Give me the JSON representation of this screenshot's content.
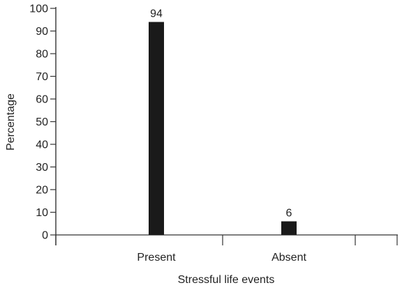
{
  "chart_data": {
    "type": "bar",
    "categories": [
      "Present",
      "Absent"
    ],
    "values": [
      94,
      6
    ],
    "data_labels": [
      "94",
      "6"
    ],
    "xlabel": "Stressful life events",
    "ylabel": "Percentage",
    "ylim": [
      0,
      100
    ],
    "yticks": [
      0,
      10,
      20,
      30,
      40,
      50,
      60,
      70,
      80,
      90,
      100
    ],
    "grid": false,
    "legend": "none",
    "bar_color": "#1a1a1a",
    "axis_color": "#333333"
  }
}
